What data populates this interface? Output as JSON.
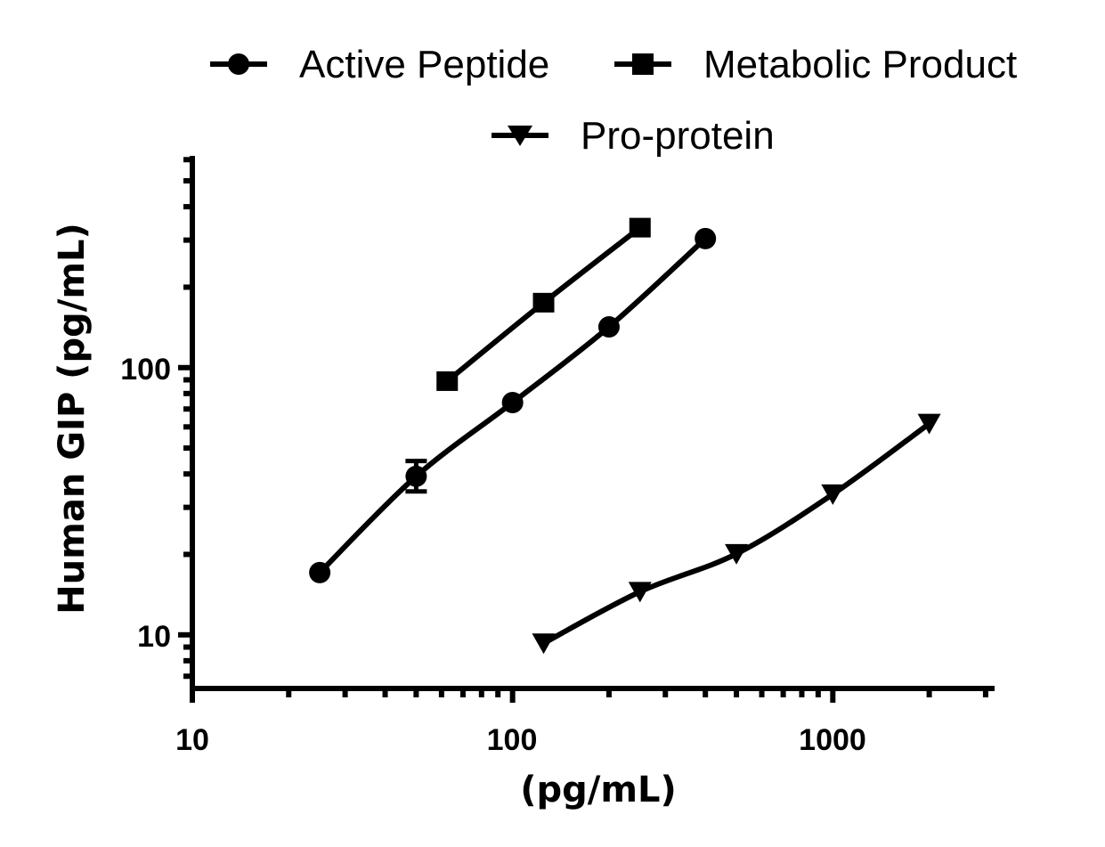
{
  "chart_data": {
    "type": "line",
    "title": "",
    "xlabel": "(pg/mL)",
    "ylabel": "Human GIP (pg/mL)",
    "x_scale": "log",
    "y_scale": "log",
    "xlim": [
      10,
      3200
    ],
    "ylim": [
      6.3,
      620
    ],
    "x_ticks": [
      10,
      100,
      1000
    ],
    "x_tick_labels": [
      "10",
      "100",
      "1000"
    ],
    "y_ticks": [
      10,
      100
    ],
    "y_tick_labels": [
      "10",
      "100"
    ],
    "grid": false,
    "legend_position": "top",
    "series": [
      {
        "name": "Active Peptide",
        "marker": "circle",
        "x": [
          25,
          50,
          100,
          200,
          400
        ],
        "y": [
          17.1,
          39.2,
          74,
          142,
          304
        ],
        "error": [
          null,
          [
            34.4,
            44.7
          ],
          null,
          null,
          null
        ]
      },
      {
        "name": "Metabolic Product",
        "marker": "square",
        "x": [
          62.5,
          125,
          250
        ],
        "y": [
          89,
          175,
          334
        ]
      },
      {
        "name": "Pro-protein",
        "marker": "triangle-down",
        "x": [
          125,
          250,
          500,
          1000,
          2000
        ],
        "y": [
          9.3,
          14.5,
          20.1,
          33.6,
          61.7
        ]
      }
    ],
    "color": "#000000"
  }
}
